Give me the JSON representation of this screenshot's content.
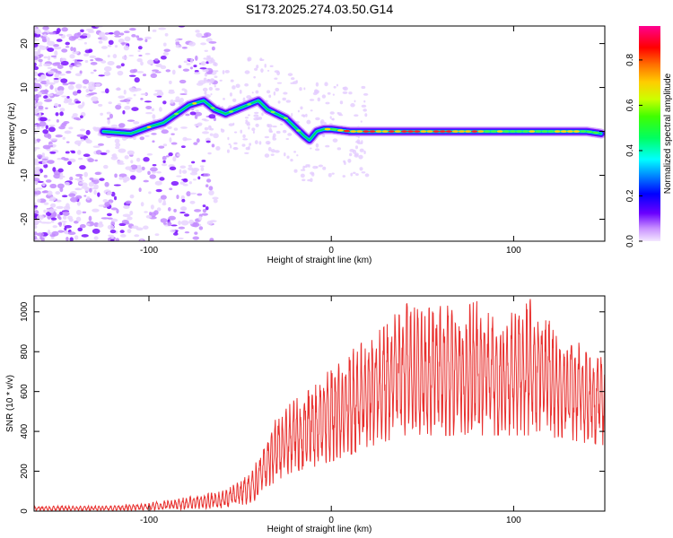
{
  "title": "S173.2025.274.03.50.G14",
  "chart_data": [
    {
      "type": "heatmap",
      "title": "S173.2025.274.03.50.G14",
      "xlabel": "Height of straight line (km)",
      "ylabel": "Frequency (Hz)",
      "xlim": [
        -163,
        150
      ],
      "ylim": [
        -25,
        24
      ],
      "x_ticks": [
        -100,
        0,
        100
      ],
      "y_ticks": [
        20,
        10,
        0,
        -10,
        -20
      ],
      "ridge": {
        "x": [
          -125,
          -110,
          -100,
          -92,
          -85,
          -78,
          -70,
          -64,
          -58,
          -52,
          -46,
          -40,
          -35,
          -30,
          -25,
          -20,
          -15,
          -12,
          -8,
          -4,
          0,
          10,
          20,
          40,
          60,
          80,
          100,
          120,
          140,
          148
        ],
        "freq": [
          0,
          -0.5,
          1,
          2,
          4,
          6,
          7,
          5,
          4,
          5,
          6,
          7,
          5,
          4,
          3,
          1,
          -1,
          -2,
          0,
          0.5,
          0.5,
          0,
          0,
          0,
          0,
          0,
          0,
          0,
          0,
          -0.5
        ]
      },
      "colorbar": {
        "label": "Normalized spectral amplitude",
        "ticks": [
          "0.0",
          "0.2",
          "0.4",
          "0.6",
          "0.8"
        ],
        "range": [
          0,
          0.95
        ]
      }
    },
    {
      "type": "line",
      "xlabel": "Height of straight line (km)",
      "ylabel": "SNR (10 * v/v)",
      "xlim": [
        -163,
        150
      ],
      "ylim": [
        0,
        1080
      ],
      "x_ticks": [
        -100,
        0,
        100
      ],
      "y_ticks": [
        0,
        200,
        400,
        600,
        800,
        1000
      ],
      "series": [
        {
          "name": "SNR",
          "color": "#e8302e",
          "envelope_x": [
            -163,
            -140,
            -120,
            -100,
            -80,
            -60,
            -50,
            -45,
            -40,
            -35,
            -30,
            -25,
            -20,
            -10,
            0,
            10,
            20,
            30,
            40,
            50,
            60,
            70,
            80,
            90,
            100,
            110,
            120,
            130,
            140,
            150
          ],
          "envelope_lo": [
            2,
            2,
            3,
            4,
            8,
            15,
            30,
            40,
            60,
            120,
            150,
            180,
            200,
            220,
            250,
            280,
            320,
            350,
            380,
            380,
            380,
            380,
            380,
            380,
            380,
            380,
            370,
            360,
            340,
            330
          ],
          "envelope_hi": [
            25,
            25,
            28,
            40,
            70,
            100,
            150,
            200,
            260,
            350,
            480,
            520,
            560,
            620,
            720,
            800,
            870,
            930,
            1050,
            1000,
            1050,
            1000,
            1060,
            960,
            1000,
            1070,
            950,
            880,
            820,
            760
          ]
        }
      ]
    }
  ]
}
